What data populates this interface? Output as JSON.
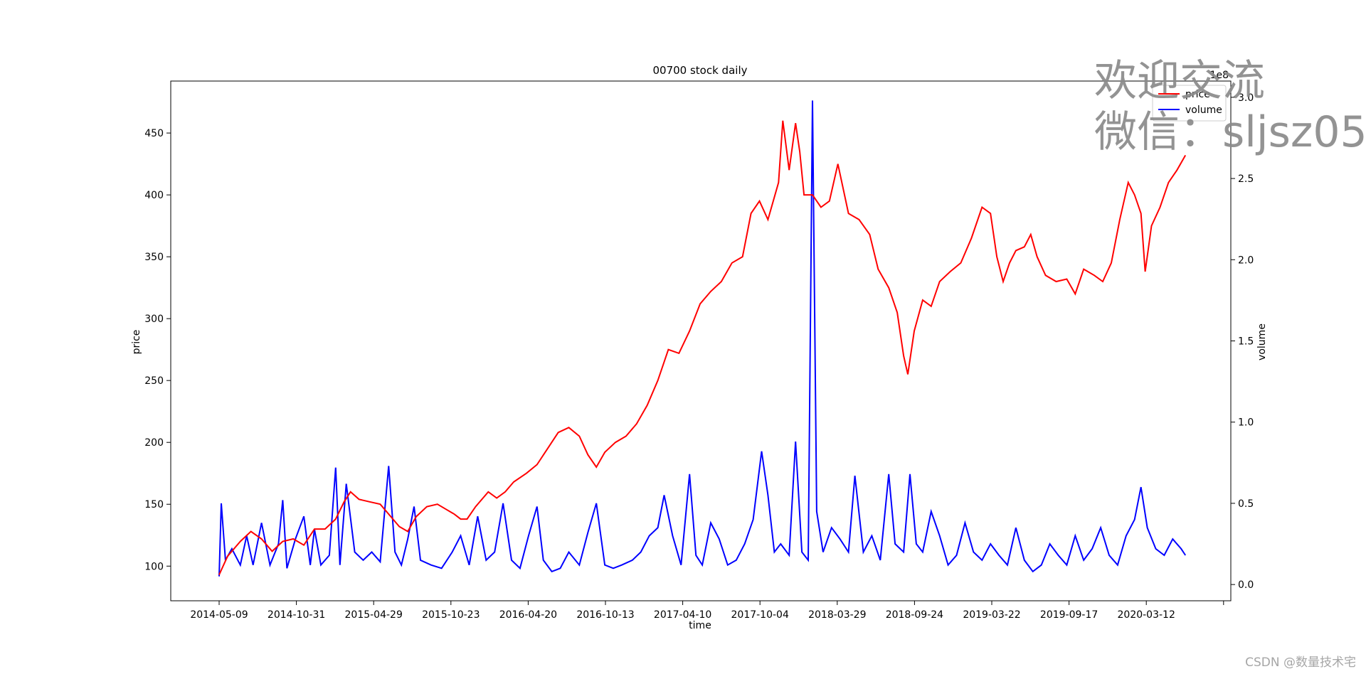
{
  "chart_data": {
    "type": "line",
    "title": "00700 stock daily",
    "xlabel": "time",
    "ylabel": "price",
    "y2label": "volume",
    "y2_offset_text": "1e8",
    "x_tick_labels": [
      "2014-05-09",
      "2014-10-31",
      "2015-04-29",
      "2015-10-23",
      "2016-04-20",
      "2016-10-13",
      "2017-04-10",
      "2017-10-04",
      "2018-03-29",
      "2018-09-24",
      "2019-03-22",
      "2019-09-17",
      "2020-03-12"
    ],
    "ylim": [
      72,
      492
    ],
    "y_ticks": [
      100,
      150,
      200,
      250,
      300,
      350,
      400,
      450
    ],
    "y2lim": [
      -0.1,
      3.1
    ],
    "y2_ticks": [
      "0.0",
      "0.5",
      "1.0",
      "1.5",
      "2.0",
      "2.5",
      "3.0"
    ],
    "legend": {
      "placement": "top-right",
      "entries": [
        "price",
        "volume"
      ]
    },
    "series": [
      {
        "name": "price",
        "axis": "left",
        "color": "#ff0000",
        "points": [
          [
            0,
            93
          ],
          [
            8,
            108
          ],
          [
            20,
            120
          ],
          [
            30,
            128
          ],
          [
            40,
            122
          ],
          [
            50,
            112
          ],
          [
            60,
            120
          ],
          [
            70,
            122
          ],
          [
            80,
            117
          ],
          [
            90,
            130
          ],
          [
            100,
            130
          ],
          [
            110,
            138
          ],
          [
            118,
            152
          ],
          [
            124,
            160
          ],
          [
            132,
            154
          ],
          [
            142,
            152
          ],
          [
            152,
            150
          ],
          [
            162,
            140
          ],
          [
            170,
            132
          ],
          [
            178,
            128
          ],
          [
            186,
            140
          ],
          [
            196,
            148
          ],
          [
            206,
            150
          ],
          [
            214,
            146
          ],
          [
            222,
            142
          ],
          [
            228,
            138
          ],
          [
            234,
            138
          ],
          [
            242,
            148
          ],
          [
            254,
            160
          ],
          [
            262,
            155
          ],
          [
            270,
            160
          ],
          [
            278,
            168
          ],
          [
            290,
            175
          ],
          [
            300,
            182
          ],
          [
            310,
            195
          ],
          [
            320,
            208
          ],
          [
            330,
            212
          ],
          [
            340,
            205
          ],
          [
            348,
            190
          ],
          [
            356,
            180
          ],
          [
            364,
            192
          ],
          [
            374,
            200
          ],
          [
            384,
            205
          ],
          [
            394,
            215
          ],
          [
            404,
            230
          ],
          [
            414,
            250
          ],
          [
            424,
            275
          ],
          [
            434,
            272
          ],
          [
            444,
            290
          ],
          [
            454,
            312
          ],
          [
            464,
            322
          ],
          [
            474,
            330
          ],
          [
            484,
            345
          ],
          [
            494,
            350
          ],
          [
            502,
            385
          ],
          [
            510,
            395
          ],
          [
            518,
            380
          ],
          [
            528,
            410
          ],
          [
            532,
            460
          ],
          [
            538,
            420
          ],
          [
            544,
            458
          ],
          [
            548,
            435
          ],
          [
            552,
            400
          ],
          [
            560,
            400
          ],
          [
            568,
            390
          ],
          [
            576,
            395
          ],
          [
            584,
            425
          ],
          [
            594,
            385
          ],
          [
            604,
            380
          ],
          [
            614,
            368
          ],
          [
            622,
            340
          ],
          [
            632,
            325
          ],
          [
            640,
            305
          ],
          [
            646,
            270
          ],
          [
            650,
            255
          ],
          [
            656,
            290
          ],
          [
            664,
            315
          ],
          [
            672,
            310
          ],
          [
            680,
            330
          ],
          [
            690,
            338
          ],
          [
            700,
            345
          ],
          [
            710,
            365
          ],
          [
            720,
            390
          ],
          [
            728,
            385
          ],
          [
            734,
            350
          ],
          [
            740,
            330
          ],
          [
            746,
            345
          ],
          [
            752,
            355
          ],
          [
            760,
            358
          ],
          [
            766,
            368
          ],
          [
            772,
            350
          ],
          [
            780,
            335
          ],
          [
            790,
            330
          ],
          [
            800,
            332
          ],
          [
            808,
            320
          ],
          [
            816,
            340
          ],
          [
            826,
            335
          ],
          [
            834,
            330
          ],
          [
            842,
            345
          ],
          [
            850,
            380
          ],
          [
            858,
            410
          ],
          [
            864,
            400
          ],
          [
            870,
            385
          ],
          [
            874,
            338
          ],
          [
            880,
            375
          ],
          [
            888,
            390
          ],
          [
            896,
            410
          ],
          [
            904,
            420
          ],
          [
            912,
            432
          ]
        ]
      },
      {
        "name": "volume",
        "axis": "right",
        "color": "#0000ff",
        "points": [
          [
            0,
            0.05
          ],
          [
            2,
            0.5
          ],
          [
            6,
            0.15
          ],
          [
            12,
            0.22
          ],
          [
            20,
            0.12
          ],
          [
            26,
            0.3
          ],
          [
            32,
            0.12
          ],
          [
            40,
            0.38
          ],
          [
            48,
            0.12
          ],
          [
            56,
            0.25
          ],
          [
            60,
            0.52
          ],
          [
            64,
            0.1
          ],
          [
            72,
            0.28
          ],
          [
            80,
            0.42
          ],
          [
            86,
            0.12
          ],
          [
            90,
            0.34
          ],
          [
            96,
            0.12
          ],
          [
            104,
            0.18
          ],
          [
            110,
            0.72
          ],
          [
            114,
            0.12
          ],
          [
            120,
            0.62
          ],
          [
            128,
            0.2
          ],
          [
            136,
            0.15
          ],
          [
            144,
            0.2
          ],
          [
            152,
            0.14
          ],
          [
            160,
            0.73
          ],
          [
            166,
            0.2
          ],
          [
            172,
            0.12
          ],
          [
            178,
            0.28
          ],
          [
            184,
            0.48
          ],
          [
            190,
            0.15
          ],
          [
            200,
            0.12
          ],
          [
            210,
            0.1
          ],
          [
            220,
            0.2
          ],
          [
            228,
            0.3
          ],
          [
            236,
            0.12
          ],
          [
            244,
            0.42
          ],
          [
            252,
            0.15
          ],
          [
            260,
            0.2
          ],
          [
            268,
            0.5
          ],
          [
            276,
            0.15
          ],
          [
            284,
            0.1
          ],
          [
            292,
            0.3
          ],
          [
            300,
            0.48
          ],
          [
            306,
            0.15
          ],
          [
            314,
            0.08
          ],
          [
            322,
            0.1
          ],
          [
            330,
            0.2
          ],
          [
            340,
            0.12
          ],
          [
            348,
            0.32
          ],
          [
            356,
            0.5
          ],
          [
            364,
            0.12
          ],
          [
            372,
            0.1
          ],
          [
            380,
            0.12
          ],
          [
            390,
            0.15
          ],
          [
            398,
            0.2
          ],
          [
            406,
            0.3
          ],
          [
            414,
            0.35
          ],
          [
            420,
            0.55
          ],
          [
            428,
            0.3
          ],
          [
            436,
            0.12
          ],
          [
            444,
            0.68
          ],
          [
            450,
            0.18
          ],
          [
            456,
            0.12
          ],
          [
            464,
            0.38
          ],
          [
            472,
            0.28
          ],
          [
            480,
            0.12
          ],
          [
            488,
            0.15
          ],
          [
            496,
            0.25
          ],
          [
            504,
            0.4
          ],
          [
            512,
            0.82
          ],
          [
            518,
            0.55
          ],
          [
            524,
            0.2
          ],
          [
            530,
            0.25
          ],
          [
            538,
            0.18
          ],
          [
            544,
            0.88
          ],
          [
            550,
            0.2
          ],
          [
            556,
            0.15
          ],
          [
            560,
            2.98
          ],
          [
            564,
            0.45
          ],
          [
            570,
            0.2
          ],
          [
            578,
            0.35
          ],
          [
            586,
            0.28
          ],
          [
            594,
            0.2
          ],
          [
            600,
            0.67
          ],
          [
            608,
            0.2
          ],
          [
            616,
            0.3
          ],
          [
            624,
            0.15
          ],
          [
            632,
            0.68
          ],
          [
            638,
            0.25
          ],
          [
            646,
            0.2
          ],
          [
            652,
            0.68
          ],
          [
            658,
            0.25
          ],
          [
            664,
            0.2
          ],
          [
            672,
            0.45
          ],
          [
            680,
            0.3
          ],
          [
            688,
            0.12
          ],
          [
            696,
            0.18
          ],
          [
            704,
            0.38
          ],
          [
            712,
            0.2
          ],
          [
            720,
            0.15
          ],
          [
            728,
            0.25
          ],
          [
            736,
            0.18
          ],
          [
            744,
            0.12
          ],
          [
            752,
            0.35
          ],
          [
            760,
            0.15
          ],
          [
            768,
            0.08
          ],
          [
            776,
            0.12
          ],
          [
            784,
            0.25
          ],
          [
            792,
            0.18
          ],
          [
            800,
            0.12
          ],
          [
            808,
            0.3
          ],
          [
            816,
            0.15
          ],
          [
            824,
            0.22
          ],
          [
            832,
            0.35
          ],
          [
            840,
            0.18
          ],
          [
            848,
            0.12
          ],
          [
            856,
            0.3
          ],
          [
            864,
            0.4
          ],
          [
            870,
            0.6
          ],
          [
            876,
            0.35
          ],
          [
            884,
            0.22
          ],
          [
            892,
            0.18
          ],
          [
            900,
            0.28
          ],
          [
            908,
            0.22
          ],
          [
            912,
            0.18
          ]
        ]
      }
    ]
  },
  "watermark": {
    "line1": "欢迎交流",
    "line2": "微信：sljsz05"
  },
  "footer": {
    "credit": "CSDN @数量技术宅"
  }
}
